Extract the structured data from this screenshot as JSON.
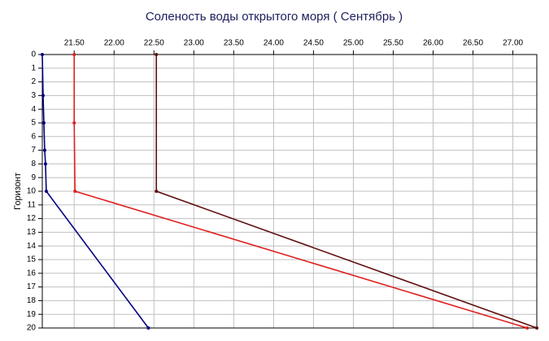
{
  "chart_data": {
    "type": "line",
    "title": "Соленость воды открытого моря    ( Сентябрь )",
    "y_label": "Горизонт",
    "xlim": [
      21.1,
      27.3
    ],
    "xticks": [
      {
        "value": 21.5,
        "label": "21.50"
      },
      {
        "value": 22,
        "label": "22.00"
      },
      {
        "value": 22.5,
        "label": "22.50"
      },
      {
        "value": 23,
        "label": "23.00"
      },
      {
        "value": 23.5,
        "label": "23.50"
      },
      {
        "value": 24,
        "label": "24.00"
      },
      {
        "value": 24.5,
        "label": "24.50"
      },
      {
        "value": 25,
        "label": "25.00"
      },
      {
        "value": 25.5,
        "label": "25.50"
      },
      {
        "value": 26,
        "label": "26.00"
      },
      {
        "value": 26.5,
        "label": "26.50"
      },
      {
        "value": 27,
        "label": "27.00"
      }
    ],
    "ylim": [
      0,
      20
    ],
    "yticks": [
      0,
      1,
      2,
      3,
      4,
      5,
      6,
      7,
      8,
      9,
      10,
      11,
      12,
      13,
      14,
      15,
      16,
      17,
      18,
      19,
      20
    ],
    "y_inverted": true,
    "grid": true,
    "series": [
      {
        "color": "#000080",
        "depths": [
          0,
          3,
          5,
          7,
          8,
          10,
          20
        ],
        "values": [
          21.1,
          21.11,
          21.12,
          21.13,
          21.14,
          21.15,
          22.43
        ]
      },
      {
        "color": "#e02020",
        "depths": [
          0,
          5,
          10,
          20
        ],
        "values": [
          21.5,
          21.5,
          21.51,
          27.18
        ]
      },
      {
        "color": "#601010",
        "depths": [
          0,
          10,
          20
        ],
        "values": [
          22.53,
          22.53,
          27.3
        ]
      }
    ]
  }
}
